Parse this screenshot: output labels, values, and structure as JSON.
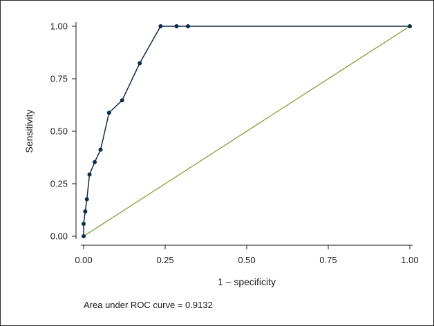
{
  "chart_data": {
    "type": "line",
    "xlabel": "1 – specificity",
    "ylabel": "Sensitivity",
    "xlim": [
      0,
      1
    ],
    "ylim": [
      0,
      1
    ],
    "x_ticks": [
      "0.00",
      "0.25",
      "0.50",
      "0.75",
      "1.00"
    ],
    "y_ticks": [
      "0.00",
      "0.25",
      "0.50",
      "0.75",
      "1.00"
    ],
    "grid": false,
    "series": [
      {
        "color": "#0d2c4a",
        "markers": true,
        "x": [
          0.0,
          0.0,
          0.005,
          0.01,
          0.018,
          0.034,
          0.052,
          0.078,
          0.118,
          0.172,
          0.236,
          0.285,
          0.32,
          1.0
        ],
        "y": [
          0.0,
          0.059,
          0.118,
          0.176,
          0.294,
          0.353,
          0.412,
          0.588,
          0.647,
          0.824,
          1.0,
          1.0,
          1.0,
          1.0
        ]
      },
      {
        "color": "#7a9a2a",
        "markers": false,
        "x": [
          0,
          1
        ],
        "y": [
          0,
          1
        ]
      }
    ],
    "annotation": "Area under ROC curve = 0.9132"
  }
}
